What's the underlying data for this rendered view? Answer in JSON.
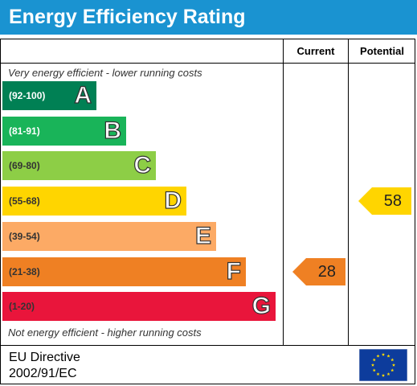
{
  "header": {
    "title": "Energy Efficiency Rating"
  },
  "columns": {
    "current": "Current",
    "potential": "Potential"
  },
  "captions": {
    "top": "Very energy efficient - lower running costs",
    "bottom": "Not energy efficient - higher running costs"
  },
  "chart_data": {
    "type": "bar",
    "title": "Energy Efficiency Rating",
    "categories": [
      "A",
      "B",
      "C",
      "D",
      "E",
      "F",
      "G"
    ],
    "ranges": [
      "(92-100)",
      "(81-91)",
      "(69-80)",
      "(55-68)",
      "(39-54)",
      "(21-38)",
      "(1-20)"
    ],
    "colors": [
      "#008054",
      "#19b459",
      "#8dce46",
      "#ffd500",
      "#fcaa65",
      "#ef8023",
      "#e9153b"
    ],
    "range_text_colors": [
      "#ffffff",
      "#ffffff",
      "#333333",
      "#333333",
      "#333333",
      "#333333",
      "#333333"
    ],
    "current": {
      "value": 28,
      "band": "F",
      "color": "#ef8023"
    },
    "potential": {
      "value": 58,
      "band": "D",
      "color": "#ffd500"
    }
  },
  "footer": {
    "line1": "EU Directive",
    "line2": "2002/91/EC",
    "flag_icon": "eu-flag-icon"
  }
}
